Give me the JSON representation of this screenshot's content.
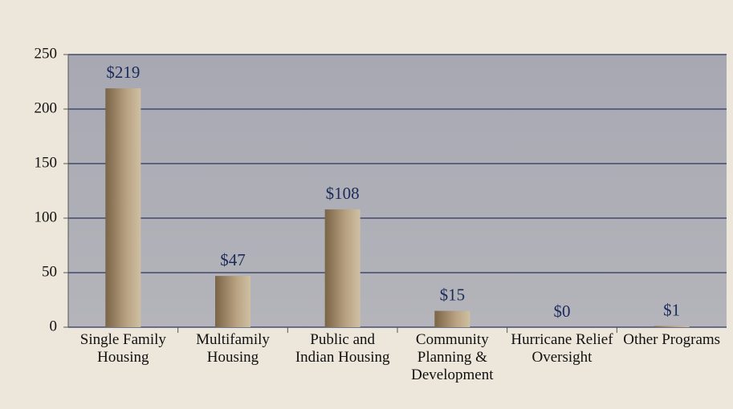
{
  "chart_data": {
    "type": "bar",
    "categories": [
      "Single Family Housing",
      "Multifamily Housing",
      "Public and Indian Housing",
      "Community Planning & Development",
      "Hurricane Relief Oversight",
      "Other Programs"
    ],
    "values": [
      219,
      47,
      108,
      15,
      0,
      1
    ],
    "value_labels": [
      "$219",
      "$47",
      "$108",
      "$15",
      "$0",
      "$1"
    ],
    "color": "#a08a68",
    "ylim": [
      0,
      250
    ],
    "yticks": [
      0,
      50,
      100,
      150,
      200,
      250
    ],
    "grid": true
  }
}
